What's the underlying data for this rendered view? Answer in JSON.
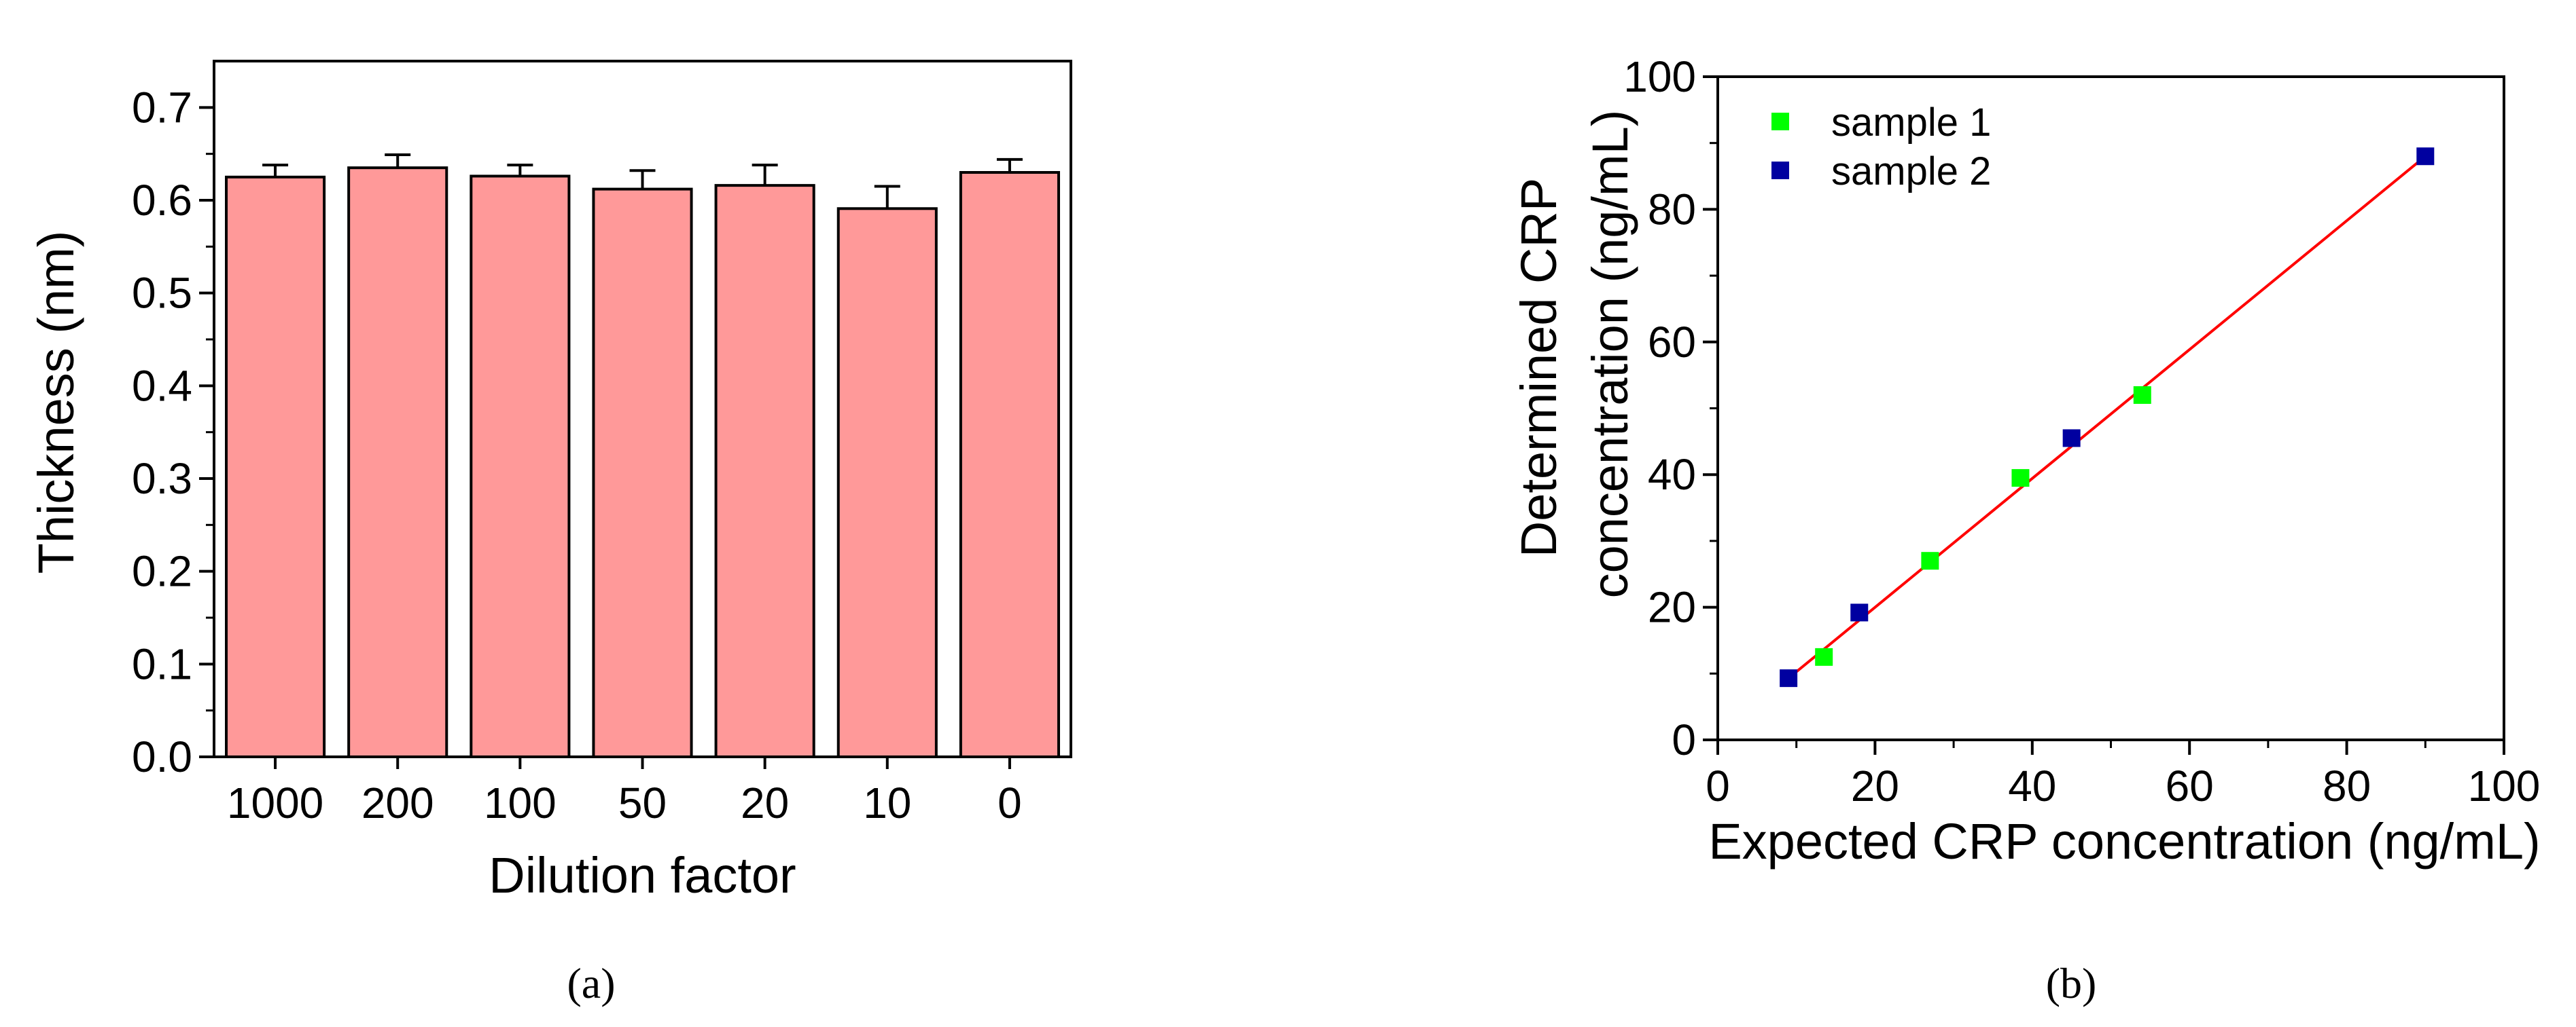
{
  "chart_data": [
    {
      "panel": "(a)",
      "type": "bar",
      "title": "",
      "xlabel": "Dilution factor",
      "ylabel": "Thickness (nm)",
      "ylim": [
        0,
        0.75
      ],
      "yticks": [
        "0.0",
        "0.1",
        "0.2",
        "0.3",
        "0.4",
        "0.5",
        "0.6",
        "0.7"
      ],
      "categories": [
        "1000",
        "200",
        "100",
        "50",
        "20",
        "10",
        "0"
      ],
      "values": [
        0.625,
        0.635,
        0.626,
        0.612,
        0.616,
        0.591,
        0.63
      ],
      "errors": [
        0.013,
        0.014,
        0.012,
        0.02,
        0.022,
        0.024,
        0.014
      ],
      "bar_color": "#ff9999",
      "edge_color": "#000000",
      "grid": false
    },
    {
      "panel": "(b)",
      "type": "scatter",
      "title": "",
      "xlabel": "Expected CRP concentration (ng/mL)",
      "ylabel_lines": [
        "Determined CRP",
        "concentration (ng/mL)"
      ],
      "xlim": [
        0,
        100
      ],
      "ylim": [
        0,
        100
      ],
      "xticks": [
        "0",
        "20",
        "40",
        "60",
        "80",
        "100"
      ],
      "yticks": [
        "0",
        "20",
        "40",
        "60",
        "80",
        "100"
      ],
      "legend_position": "top-left",
      "grid": false,
      "series": [
        {
          "name": "sample 1",
          "color": "#00ff00",
          "x": [
            13.5,
            27,
            38.5,
            54
          ],
          "y": [
            12.5,
            27,
            39.5,
            52
          ]
        },
        {
          "name": "sample 2",
          "color": "#0000a0",
          "x": [
            9,
            18,
            45,
            90
          ],
          "y": [
            9.3,
            19.2,
            45.5,
            88
          ]
        }
      ],
      "fit_line": {
        "color": "#ff0000",
        "x": [
          9,
          90
        ],
        "y": [
          9.3,
          88
        ]
      }
    }
  ]
}
